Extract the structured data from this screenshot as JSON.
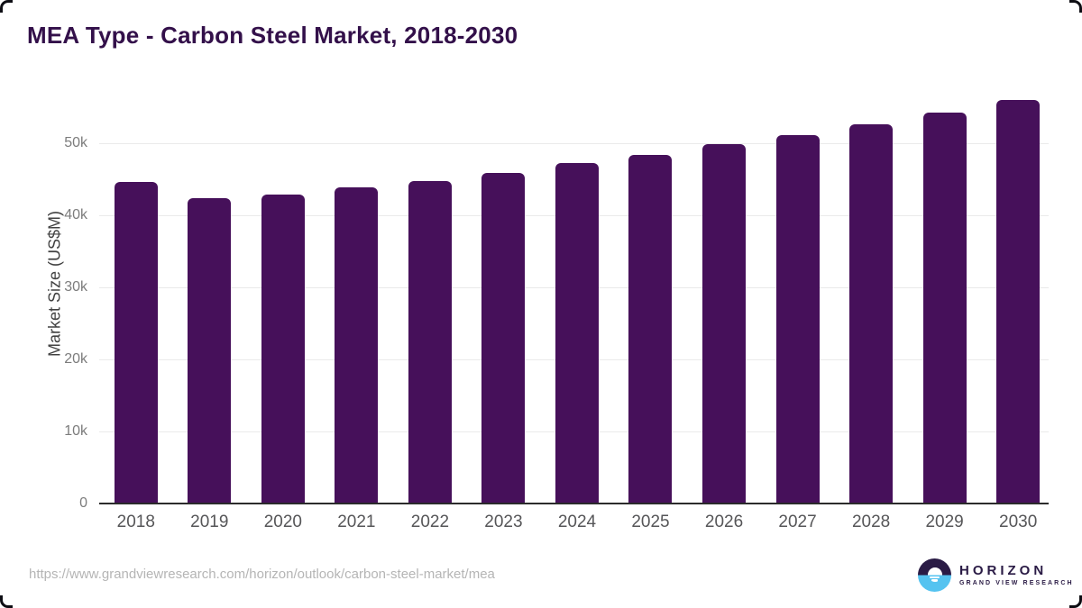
{
  "title": "MEA Type - Carbon Steel Market, 2018-2030",
  "chart_data": {
    "type": "bar",
    "title": "MEA Type - Carbon Steel Market, 2018-2030",
    "categories": [
      "2018",
      "2019",
      "2020",
      "2021",
      "2022",
      "2023",
      "2024",
      "2025",
      "2026",
      "2027",
      "2028",
      "2029",
      "2030"
    ],
    "values": [
      44500,
      42200,
      42700,
      43700,
      44600,
      45800,
      47100,
      48300,
      49700,
      51000,
      52500,
      54100,
      55900
    ],
    "xlabel": "",
    "ylabel": "Market Size (US$M)",
    "ylim": [
      0,
      57400
    ],
    "yticks": {
      "values": [
        0,
        10000,
        20000,
        30000,
        40000,
        50000
      ],
      "labels": [
        "0",
        "10k",
        "20k",
        "30k",
        "40k",
        "50k"
      ]
    },
    "grid": "horizontal gridlines at each 10k tick",
    "legend_position": "none",
    "bar_color": "#46105a"
  },
  "colors": {
    "bar": "#46105a",
    "title_text": "#33104a",
    "axis_line": "#2b2b2b",
    "gridline": "#eaeaea",
    "tick_text": "#7c7c7c",
    "year_text": "#565658",
    "url_text": "#b5b5b5",
    "logo_dark": "#2a1b45",
    "logo_blue": "#55c3f0"
  },
  "footer": {
    "source_url": "https://www.grandviewresearch.com/horizon/outlook/carbon-steel-market/mea",
    "logo": {
      "icon": "horizon-sunset-circle-icon",
      "brand": "HORIZON",
      "subtitle": "GRAND VIEW RESEARCH"
    }
  }
}
